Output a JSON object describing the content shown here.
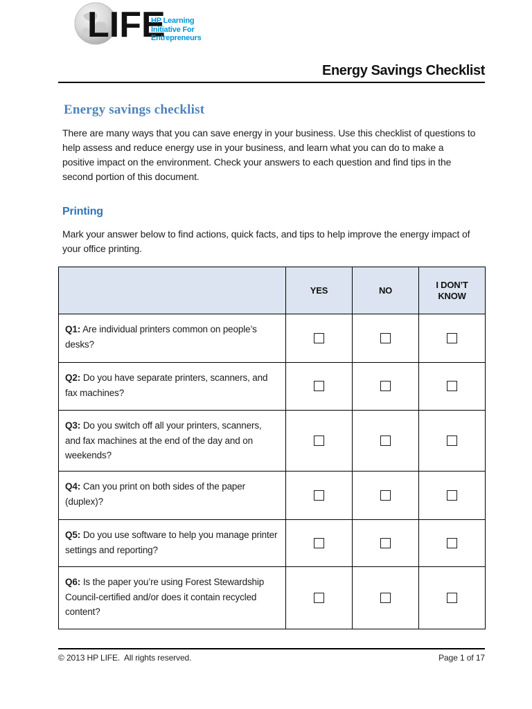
{
  "header": {
    "logo": {
      "life": "LIFE",
      "tagline_lines": [
        "HP Learning",
        "Initiative For",
        "Entrepreneurs"
      ]
    },
    "doc_title": "Energy Savings Checklist"
  },
  "intro": {
    "heading": "Energy savings checklist",
    "body": "There are many ways that you can save energy in your business. Use this checklist of questions to help assess and reduce energy use in your business, and learn what you can do to make a positive impact on the environment. Check your answers to each question and find tips in the second portion of this document."
  },
  "section": {
    "heading": "Printing",
    "body": "Mark your answer below to find actions, quick facts, and tips to help improve the energy impact of your office printing."
  },
  "table": {
    "columns": [
      "",
      "YES",
      "NO",
      "I DON’T KNOW"
    ],
    "answer_keys": [
      "yes",
      "no",
      "dont-know"
    ],
    "rows": [
      {
        "id": "Q1:",
        "text": "Are individual printers common on people’s desks?"
      },
      {
        "id": "Q2:",
        "text": "Do you have separate printers, scanners, and fax machines?"
      },
      {
        "id": "Q3:",
        "text": "Do you switch off all your printers, scanners, and fax machines at the end of the day and on weekends?"
      },
      {
        "id": "Q4:",
        "text": "Can you print on both sides of the paper (duplex)?"
      },
      {
        "id": "Q5:",
        "text": "Do you use software to help you manage printer settings and reporting?"
      },
      {
        "id": "Q6:",
        "text": "Is the paper you’re using Forest Stewardship Council-certified and/or does it contain recycled content?"
      }
    ]
  },
  "footer": {
    "copyright": "© 2013 HP LIFE.  All rights reserved.",
    "page": "Page 1 of 17"
  },
  "colors": {
    "serif_heading_blue": "#4f81bd",
    "section_heading_blue": "#2e75b6",
    "logo_tagline_blue": "#0096d6",
    "table_header_bg": "#dbe4f0",
    "border_black": "#000000"
  }
}
